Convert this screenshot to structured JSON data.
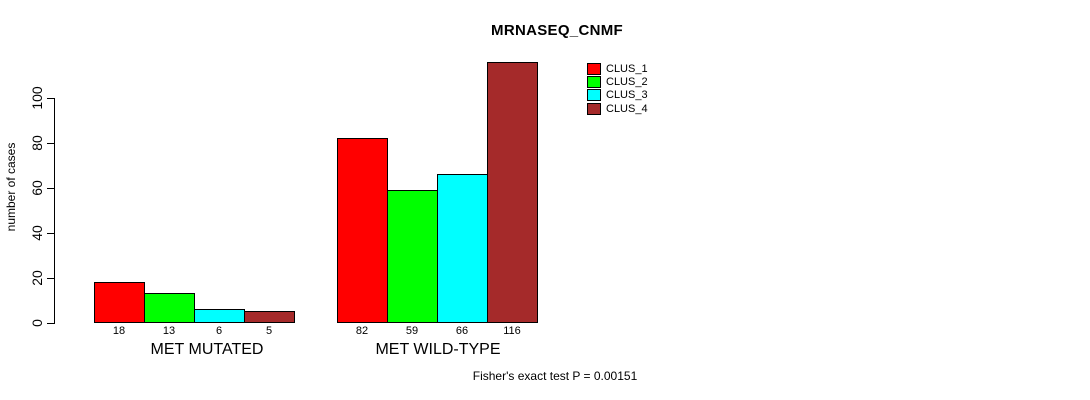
{
  "page": {
    "background_color": "#ffffff",
    "text_color": "#000000",
    "axis_color": "#000000"
  },
  "chart_data": {
    "type": "bar",
    "title": "MRNASEQ_CNMF",
    "xlabel": "",
    "ylabel": "number of cases",
    "categories": [
      "MET MUTATED",
      "MET WILD-TYPE"
    ],
    "series": [
      {
        "name": "CLUS_1",
        "color": "#FF0000",
        "values": [
          18,
          82
        ]
      },
      {
        "name": "CLUS_2",
        "color": "#00FF00",
        "values": [
          13,
          59
        ]
      },
      {
        "name": "CLUS_3",
        "color": "#00FFFF",
        "values": [
          6,
          66
        ]
      },
      {
        "name": "CLUS_4",
        "color": "#A52A2A",
        "values": [
          5,
          116
        ]
      }
    ],
    "bar_value_labels_shown": true,
    "yticks": [
      0,
      20,
      40,
      60,
      80,
      100
    ],
    "ylim": [
      0,
      116
    ],
    "grid": false,
    "legend": {
      "position": "top-right",
      "entries": [
        "CLUS_1",
        "CLUS_2",
        "CLUS_3",
        "CLUS_4"
      ]
    },
    "annotation": "Fisher's exact test P = 0.00151"
  }
}
